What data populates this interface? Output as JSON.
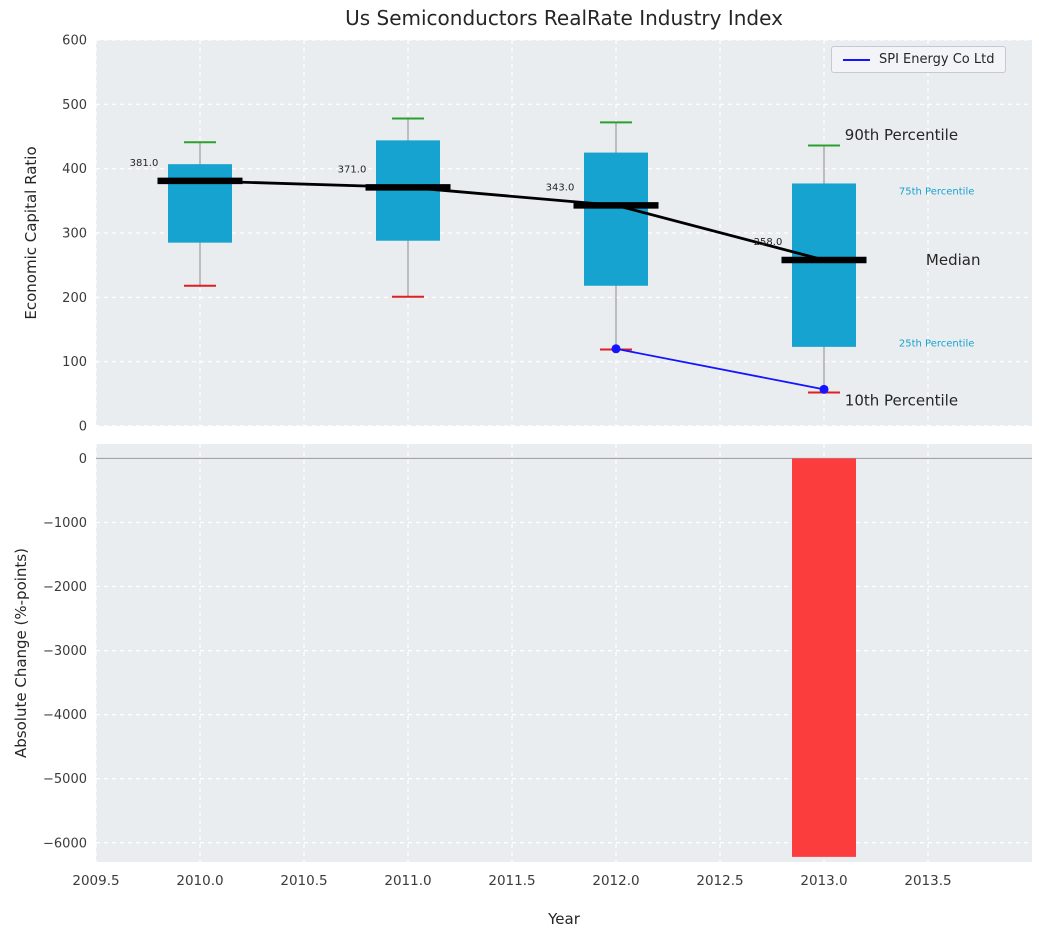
{
  "title": "Us Semiconductors RealRate Industry Index",
  "legend": {
    "label": "SPI Energy Co Ltd"
  },
  "colors": {
    "box_fill": "#17a3cf",
    "whisker_line": "#8a8a8a",
    "cap_top_green": "#2ca02c",
    "cap_bottom_red": "#e02020",
    "median_black": "#000000",
    "spi_line_blue": "#1414ff",
    "bar_negative_red": "#fc3d3d",
    "axes_background": "#e9edf0",
    "grid_white": "#ffffff",
    "zero_line_gray": "#999999",
    "tick_text": "#3b3b3b",
    "annotation_text": "#262626",
    "percentile_label_cyan": "#17a3cf"
  },
  "chart_data": [
    {
      "type": "box",
      "panel": "top",
      "title": "Us Semiconductors RealRate Industry Index",
      "ylabel": "Economic Capital Ratio",
      "ylim": [
        0,
        600
      ],
      "xlim": [
        2009.5,
        2014.0
      ],
      "grid": true,
      "yticks": [
        {
          "v": 600,
          "label": "600"
        },
        {
          "v": 500,
          "label": "500"
        },
        {
          "v": 400,
          "label": "400"
        },
        {
          "v": 300,
          "label": "300"
        },
        {
          "v": 200,
          "label": "200"
        },
        {
          "v": 100,
          "label": "100"
        },
        {
          "v": 0,
          "label": "0"
        }
      ],
      "boxes": [
        {
          "x": 2010,
          "p10": 218,
          "p25": 285,
          "median": 381,
          "p75": 407,
          "p90": 441,
          "median_label": "381.0"
        },
        {
          "x": 2011,
          "p10": 201,
          "p25": 288,
          "median": 371,
          "p75": 444,
          "p90": 478,
          "median_label": "371.0"
        },
        {
          "x": 2012,
          "p10": 119,
          "p25": 218,
          "median": 343,
          "p75": 425,
          "p90": 472,
          "median_label": "343.0"
        },
        {
          "x": 2013,
          "p10": 52,
          "p25": 123,
          "median": 258,
          "p75": 377,
          "p90": 436,
          "median_label": "258.0"
        }
      ],
      "median_trend": {
        "x": [
          2010,
          2011,
          2012,
          2013
        ],
        "y": [
          381,
          371,
          343,
          258
        ]
      },
      "series": [
        {
          "name": "SPI Energy Co Ltd",
          "x": [
            2012,
            2013
          ],
          "y": [
            120,
            57
          ]
        }
      ],
      "annotations": [
        {
          "text": "90th Percentile",
          "x": 2013.1,
          "y": 452,
          "color": "black",
          "size": 15
        },
        {
          "text": "75th Percentile",
          "x": 2013.36,
          "y": 368,
          "color": "cyan",
          "size": 10
        },
        {
          "text": "Median",
          "x": 2013.49,
          "y": 258,
          "color": "black",
          "size": 15
        },
        {
          "text": "25th Percentile",
          "x": 2013.36,
          "y": 131,
          "color": "cyan",
          "size": 10
        },
        {
          "text": "10th Percentile",
          "x": 2013.1,
          "y": 40,
          "color": "black",
          "size": 15
        }
      ],
      "legend_position": "upper right"
    },
    {
      "type": "bar",
      "panel": "bottom",
      "ylabel": "Absolute Change (%-points)",
      "xlabel": "Year",
      "ylim": [
        -6300,
        225
      ],
      "xlim": [
        2009.5,
        2014.0
      ],
      "grid": true,
      "zero_line": 0,
      "yticks": [
        {
          "v": 0,
          "label": "0"
        },
        {
          "v": -1000,
          "label": "−1000"
        },
        {
          "v": -2000,
          "label": "−2000"
        },
        {
          "v": -3000,
          "label": "−3000"
        },
        {
          "v": -4000,
          "label": "−4000"
        },
        {
          "v": -5000,
          "label": "−5000"
        },
        {
          "v": -6000,
          "label": "−6000"
        }
      ],
      "xticks": [
        {
          "v": 2009.5,
          "label": "2009.5"
        },
        {
          "v": 2010.0,
          "label": "2010.0"
        },
        {
          "v": 2010.5,
          "label": "2010.5"
        },
        {
          "v": 2011.0,
          "label": "2011.0"
        },
        {
          "v": 2011.5,
          "label": "2011.5"
        },
        {
          "v": 2012.0,
          "label": "2012.0"
        },
        {
          "v": 2012.5,
          "label": "2012.5"
        },
        {
          "v": 2013.0,
          "label": "2013.0"
        },
        {
          "v": 2013.5,
          "label": "2013.5"
        }
      ],
      "bars": [
        {
          "x": 2013,
          "value": -6220
        }
      ]
    }
  ]
}
